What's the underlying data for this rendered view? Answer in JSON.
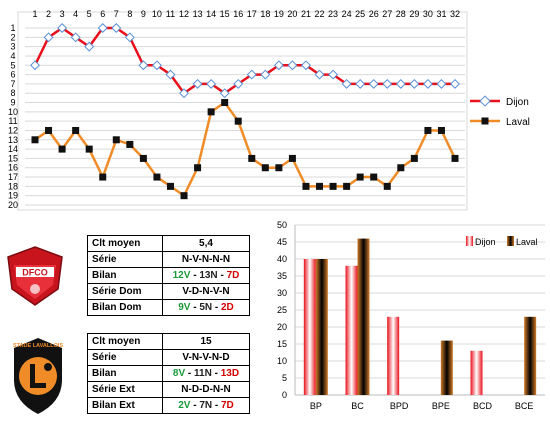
{
  "chart_data": [
    {
      "type": "line",
      "title": "",
      "xlabel": "",
      "ylabel": "",
      "x": [
        1,
        2,
        3,
        4,
        5,
        6,
        7,
        8,
        9,
        10,
        11,
        12,
        13,
        14,
        15,
        16,
        17,
        18,
        19,
        20,
        21,
        22,
        23,
        24,
        25,
        26,
        27,
        28,
        29,
        30,
        31,
        32
      ],
      "ylim": [
        20,
        1
      ],
      "y_ticks": [
        1,
        2,
        3,
        4,
        5,
        6,
        7,
        8,
        9,
        10,
        11,
        12,
        13,
        14,
        15,
        16,
        17,
        18,
        19,
        20
      ],
      "grid": true,
      "legend_position": "right",
      "series": [
        {
          "name": "Dijon",
          "color": "#e8101a",
          "marker": "diamond-open",
          "values": [
            5,
            2,
            1,
            2,
            3,
            1,
            1,
            2,
            5,
            5,
            6,
            8,
            7,
            7,
            8,
            7,
            6,
            6,
            5,
            5,
            5,
            6,
            6,
            7,
            7,
            7,
            7,
            7,
            7,
            7,
            7,
            7
          ]
        },
        {
          "name": "Laval",
          "color": "#f08c28",
          "marker": "square-black",
          "values": [
            13,
            12,
            14,
            12,
            14,
            17,
            13,
            13.5,
            15,
            17,
            18,
            19,
            16,
            10,
            9,
            11,
            15,
            16,
            16,
            15,
            18,
            18,
            18,
            18,
            17,
            17,
            18,
            16,
            15,
            12,
            12,
            15
          ]
        }
      ]
    },
    {
      "type": "bar",
      "title": "",
      "categories": [
        "BP",
        "BC",
        "BPD",
        "BPE",
        "BCD",
        "BCE"
      ],
      "ylim": [
        0,
        50
      ],
      "y_ticks": [
        0,
        5,
        10,
        15,
        20,
        25,
        30,
        35,
        40,
        45,
        50
      ],
      "grid": true,
      "legend_position": "top-right",
      "series": [
        {
          "name": "Dijon",
          "color": "#e8101a",
          "values": [
            40,
            38,
            23,
            null,
            13,
            null
          ]
        },
        {
          "name": "Laval",
          "color": "#d07a28",
          "values": [
            40,
            46,
            null,
            16,
            null,
            23
          ]
        }
      ]
    }
  ],
  "dijon_table": {
    "rows": [
      {
        "label": "Clt moyen",
        "value": "5,4"
      },
      {
        "label": "Série",
        "value": "N-V-N-N-N"
      },
      {
        "label": "Bilan",
        "v": "12V",
        "n": "13N",
        "d": "7D"
      },
      {
        "label": "Série Dom",
        "value": "V-D-N-V-N"
      },
      {
        "label": "Bilan Dom",
        "v": "9V",
        "n": "5N",
        "d": "2D"
      }
    ]
  },
  "laval_table": {
    "rows": [
      {
        "label": "Clt moyen",
        "value": "15"
      },
      {
        "label": "Série",
        "value": "V-N-V-N-D"
      },
      {
        "label": "Bilan",
        "v": "8V",
        "n": "11N",
        "d": "13D"
      },
      {
        "label": "Série Ext",
        "value": "N-D-D-N-N"
      },
      {
        "label": "Bilan Ext",
        "v": "2V",
        "n": "7N",
        "d": "7D"
      }
    ]
  },
  "logos": {
    "dijon_text": "DFCO",
    "laval_text": "STADE LAVALLOIS"
  },
  "colors": {
    "win": "#1a9a3a",
    "draw": "#222222",
    "loss": "#d40000"
  }
}
